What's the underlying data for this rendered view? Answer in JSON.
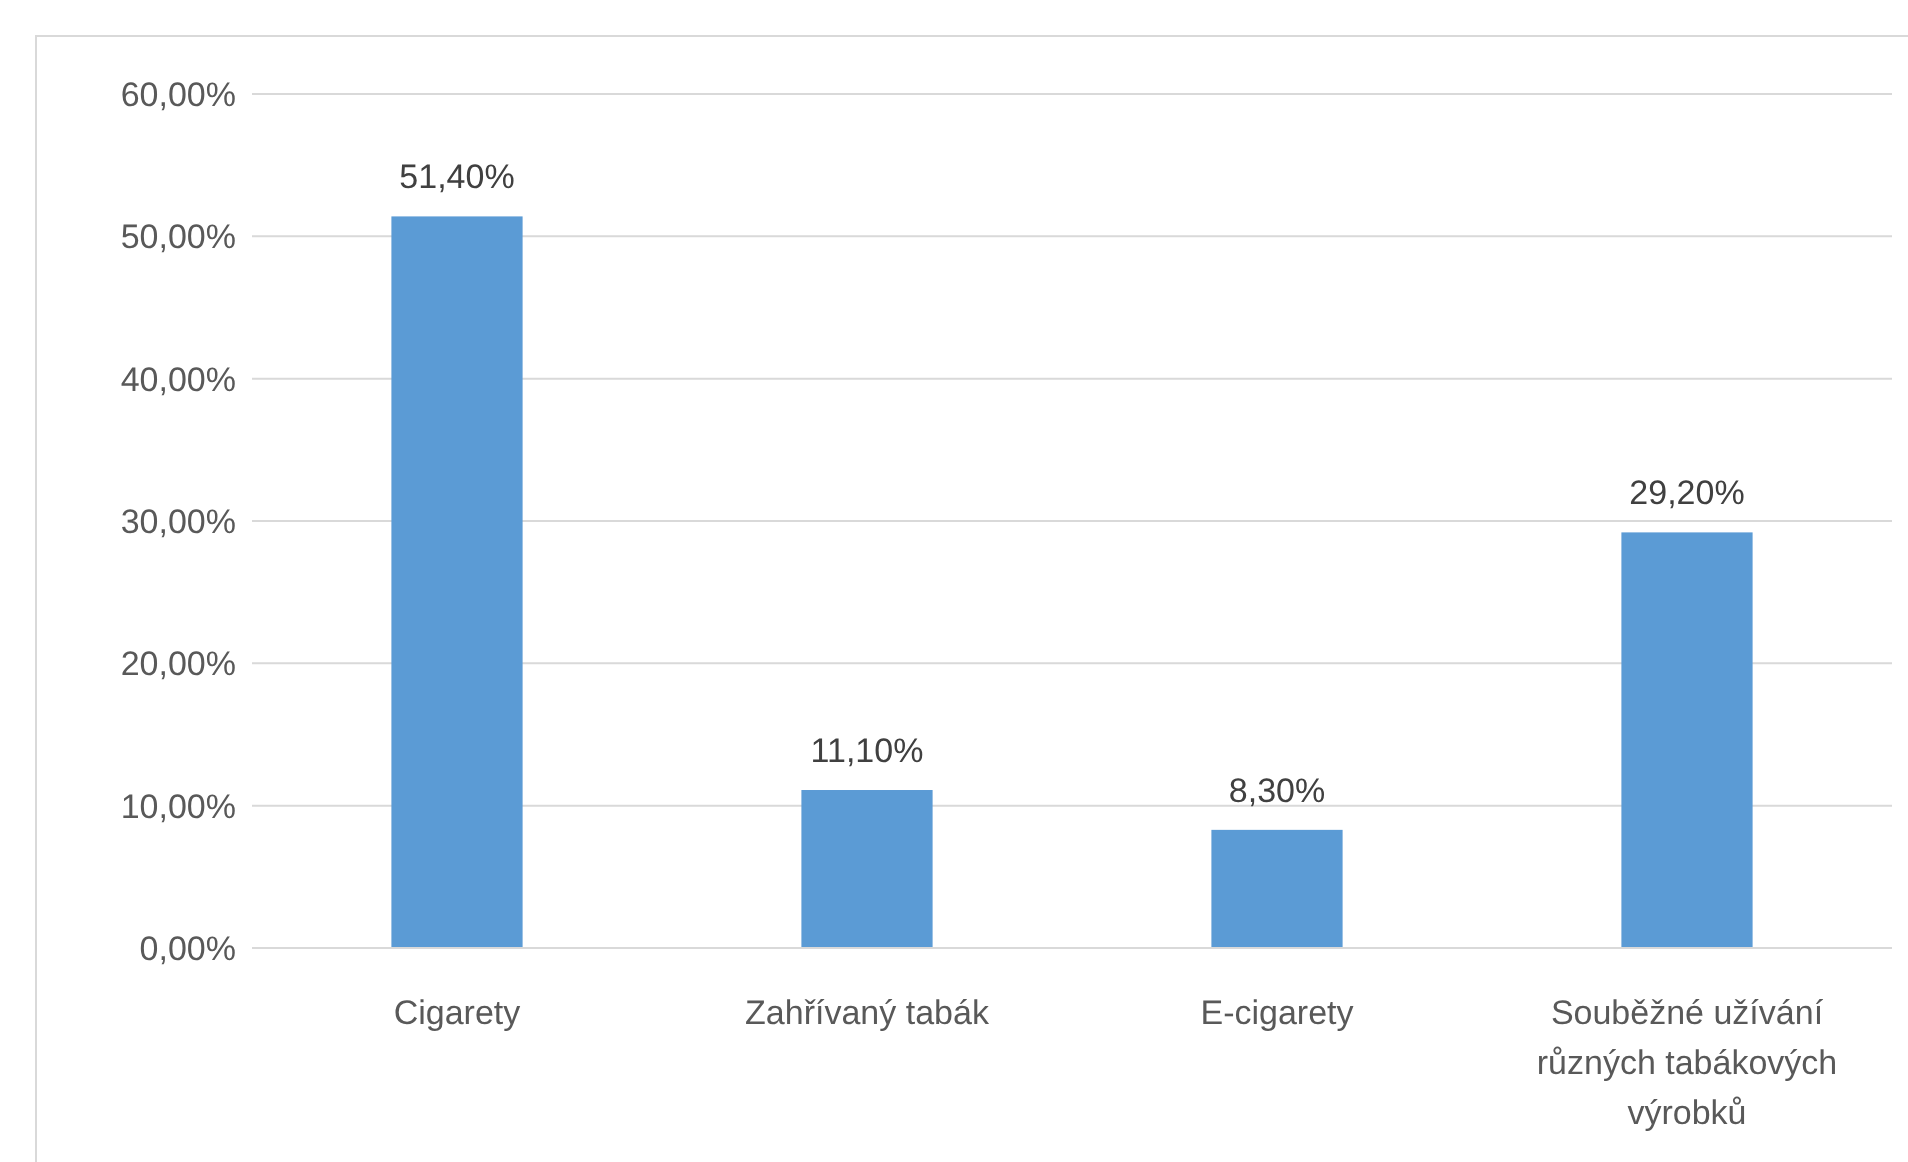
{
  "chart_data": {
    "type": "bar",
    "categories": [
      "Cigarety",
      "Zahřívaný tabák",
      "E-cigarety",
      "Souběžné užívání různých tabákových výrobků"
    ],
    "values": [
      51.4,
      11.1,
      8.3,
      29.2
    ],
    "color": "#5b9bd5",
    "value_labels": [
      "51,40%",
      "11,10%",
      "8,30%",
      "29,20%"
    ],
    "ylim": [
      0,
      60
    ],
    "yticks": [
      {
        "value": 0,
        "label": "0,00%"
      },
      {
        "value": 10,
        "label": "10,00%"
      },
      {
        "value": 20,
        "label": "20,00%"
      },
      {
        "value": 30,
        "label": "30,00%"
      },
      {
        "value": 40,
        "label": "40,00%"
      },
      {
        "value": 50,
        "label": "50,00%"
      },
      {
        "value": 60,
        "label": "60,00%"
      }
    ],
    "grid": "y"
  }
}
